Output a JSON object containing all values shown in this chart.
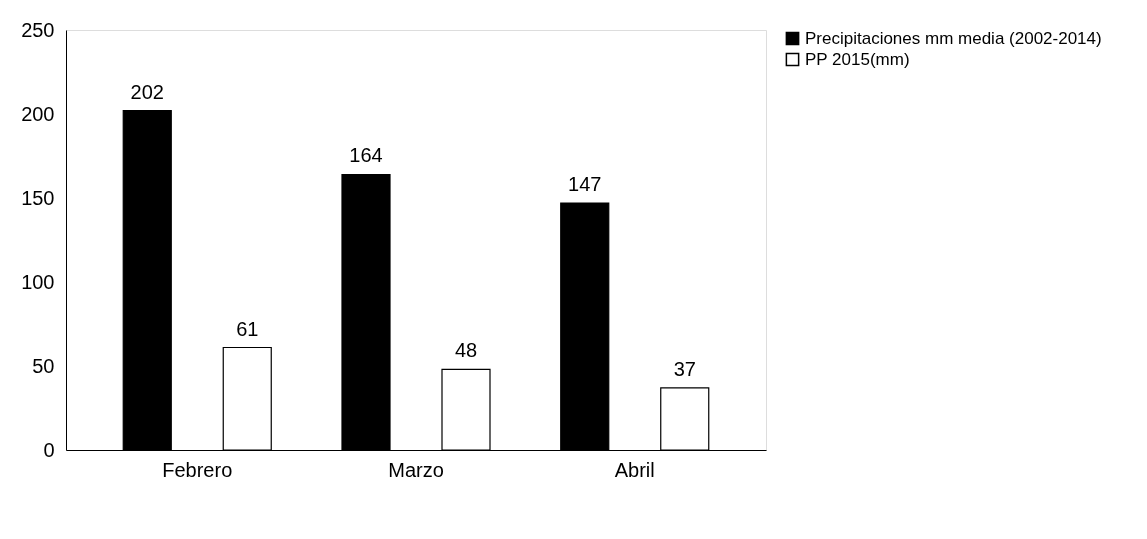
{
  "chart_data": {
    "type": "bar",
    "categories": [
      "Febrero",
      "Marzo",
      "Abril"
    ],
    "series": [
      {
        "name": "Precipitaciones mm media (2002-2014)",
        "color": "#000000",
        "values": [
          202,
          164,
          147
        ]
      },
      {
        "name": "PP 2015(mm)",
        "color": "#ffffff",
        "values": [
          61,
          48,
          37
        ]
      }
    ],
    "ylim": [
      0,
      250
    ],
    "yticks": [
      0,
      50,
      100,
      150,
      200,
      250
    ],
    "data_labels": true,
    "grid": false,
    "legend": "right"
  }
}
